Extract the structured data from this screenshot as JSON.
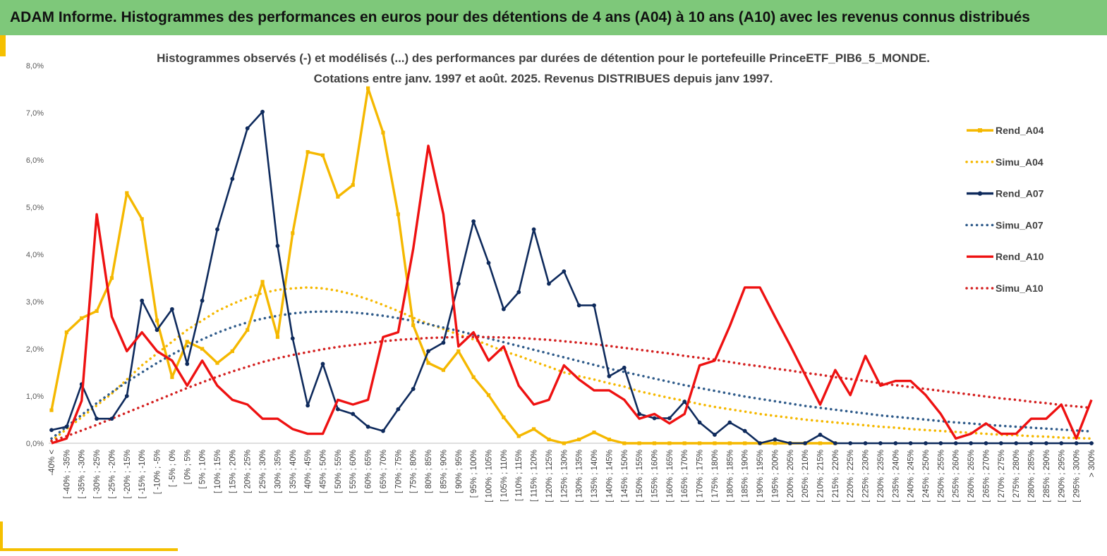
{
  "banner": {
    "title": "ADAM Informe. Histogrammes des performances en euros pour des détentions de 4 ans (A04) à 10 ans (A10) avec les revenus connus distribués"
  },
  "chart_data": {
    "type": "line",
    "title": "Histogrammes observés (-) et modélisés (...) des performances par durées de détention pour le portefeuille PrinceETF_PIB6_5_MONDE.",
    "subtitle": "Cotations entre janv. 1997 et août. 2025. Revenus DISTRIBUES depuis janv 1997.",
    "xlabel": "",
    "ylabel": "",
    "ylim": [
      0,
      8
    ],
    "yticks": [
      "0,0%",
      "1,0%",
      "2,0%",
      "3,0%",
      "4,0%",
      "5,0%",
      "6,0%",
      "7,0%",
      "8,0%"
    ],
    "grid": false,
    "legend_position": "right",
    "categories": [
      "-40% <",
      "[ -40% ; -35%",
      "[ -35% ; -30%",
      "[ -30% ; -25%",
      "[ -25% ; -20%",
      "[ -20% ; -15%",
      "[ -15% ; -10%",
      "[ -10% ; -5%",
      "[ -5% ; 0%",
      "[ 0% ; 5%",
      "[ 5% ; 10%",
      "[ 10% ; 15%",
      "[ 15% ; 20%",
      "[ 20% ; 25%",
      "[ 25% ; 30%",
      "[ 30% ; 35%",
      "[ 35% ; 40%",
      "[ 40% ; 45%",
      "[ 45% ; 50%",
      "[ 50% ; 55%",
      "[ 55% ; 60%",
      "[ 60% ; 65%",
      "[ 65% ; 70%",
      "[ 70% ; 75%",
      "[ 75% ; 80%",
      "[ 80% ; 85%",
      "[ 85% ; 90%",
      "[ 90% ; 95%",
      "[ 95% ; 100%",
      "[ 100% ; 105%",
      "[ 105% ; 110%",
      "[ 110% ; 115%",
      "[ 115% ; 120%",
      "[ 120% ; 125%",
      "[ 125% ; 130%",
      "[ 130% ; 135%",
      "[ 135% ; 140%",
      "[ 140% ; 145%",
      "[ 145% ; 150%",
      "[ 150% ; 155%",
      "[ 155% ; 160%",
      "[ 160% ; 165%",
      "[ 165% ; 170%",
      "[ 170% ; 175%",
      "[ 175% ; 180%",
      "[ 180% ; 185%",
      "[ 185% ; 190%",
      "[ 190% ; 195%",
      "[ 195% ; 200%",
      "[ 200% ; 205%",
      "[ 205% ; 210%",
      "[ 210% ; 215%",
      "[ 215% ; 220%",
      "[ 220% ; 225%",
      "[ 225% ; 230%",
      "[ 230% ; 235%",
      "[ 235% ; 240%",
      "[ 240% ; 245%",
      "[ 245% ; 250%",
      "[ 250% ; 255%",
      "[ 255% ; 260%",
      "[ 260% ; 265%",
      "[ 265% ; 270%",
      "[ 270% ; 275%",
      "[ 275% ; 280%",
      "[ 280% ; 285%",
      "[ 285% ; 290%",
      "[ 290% ; 295%",
      "[ 295% ; 300%",
      "> 300%"
    ],
    "series": [
      {
        "name": "Rend_A04",
        "color": "#f5b800",
        "style": "solid",
        "marker": "square",
        "values": [
          0.7,
          2.35,
          2.65,
          2.8,
          3.5,
          5.3,
          4.75,
          2.6,
          1.4,
          2.15,
          2.0,
          1.7,
          1.95,
          2.4,
          3.42,
          2.25,
          4.45,
          6.17,
          6.1,
          5.22,
          5.47,
          7.52,
          6.58,
          4.85,
          2.5,
          1.7,
          1.55,
          1.95,
          1.4,
          1.02,
          0.55,
          0.15,
          0.3,
          0.08,
          0.0,
          0.08,
          0.23,
          0.08,
          0.0,
          0.0,
          0.0,
          0.0,
          0.0,
          0.0,
          0.0,
          0.0,
          0.0,
          0.0,
          0.0,
          0.0,
          0.0,
          0.0,
          0.0,
          null,
          null,
          null,
          null,
          null,
          null,
          null,
          null,
          null,
          null,
          null,
          null,
          null,
          null,
          null,
          null,
          null
        ]
      },
      {
        "name": "Simu_A04",
        "color": "#f5b800",
        "style": "dotted",
        "marker": "none",
        "values": [
          0.05,
          0.3,
          0.55,
          0.8,
          1.05,
          1.35,
          1.65,
          1.9,
          2.15,
          2.4,
          2.6,
          2.8,
          2.95,
          3.08,
          3.18,
          3.25,
          3.28,
          3.3,
          3.28,
          3.23,
          3.15,
          3.05,
          2.93,
          2.8,
          2.66,
          2.53,
          2.42,
          2.3,
          2.2,
          2.08,
          1.95,
          1.85,
          1.73,
          1.62,
          1.5,
          1.42,
          1.35,
          1.27,
          1.2,
          1.1,
          1.03,
          0.96,
          0.9,
          0.83,
          0.77,
          0.72,
          0.67,
          0.62,
          0.58,
          0.54,
          0.5,
          0.47,
          0.44,
          0.41,
          0.38,
          0.35,
          0.33,
          0.3,
          0.28,
          0.26,
          0.24,
          0.22,
          0.2,
          0.18,
          0.17,
          0.15,
          0.14,
          0.12,
          0.11,
          0.1
        ]
      },
      {
        "name": "Rend_A07",
        "color": "#0e2a5c",
        "style": "solid",
        "marker": "circle",
        "values": [
          0.28,
          0.35,
          1.25,
          0.52,
          0.52,
          1.0,
          3.02,
          2.4,
          2.84,
          1.68,
          3.02,
          4.53,
          5.6,
          6.67,
          7.02,
          4.18,
          2.22,
          0.8,
          1.68,
          0.72,
          0.62,
          0.35,
          0.26,
          0.72,
          1.15,
          1.95,
          2.13,
          3.38,
          4.7,
          3.82,
          2.84,
          3.2,
          4.53,
          3.38,
          3.64,
          2.92,
          2.92,
          1.42,
          1.6,
          0.62,
          0.53,
          0.53,
          0.88,
          0.44,
          0.18,
          0.44,
          0.26,
          0.0,
          0.08,
          0.0,
          0.0,
          0.18,
          0.0,
          0.0,
          0.0,
          0.0,
          0.0,
          0.0,
          0.0,
          0.0,
          0.0,
          0.0,
          0.0,
          0.0,
          0.0,
          0.0,
          0.0,
          0.0,
          0.0,
          0.0
        ]
      },
      {
        "name": "Simu_A07",
        "color": "#2f5b8a",
        "style": "dotted",
        "marker": "none",
        "values": [
          0.1,
          0.35,
          0.6,
          0.85,
          1.08,
          1.3,
          1.5,
          1.7,
          1.88,
          2.05,
          2.2,
          2.34,
          2.46,
          2.56,
          2.64,
          2.7,
          2.75,
          2.78,
          2.79,
          2.79,
          2.77,
          2.74,
          2.7,
          2.65,
          2.59,
          2.52,
          2.45,
          2.38,
          2.3,
          2.22,
          2.14,
          2.06,
          1.98,
          1.9,
          1.82,
          1.74,
          1.66,
          1.58,
          1.51,
          1.44,
          1.37,
          1.3,
          1.23,
          1.17,
          1.11,
          1.05,
          0.99,
          0.94,
          0.89,
          0.84,
          0.79,
          0.75,
          0.71,
          0.67,
          0.63,
          0.59,
          0.56,
          0.53,
          0.5,
          0.47,
          0.44,
          0.42,
          0.39,
          0.37,
          0.35,
          0.33,
          0.31,
          0.29,
          0.27,
          0.25
        ]
      },
      {
        "name": "Rend_A10",
        "color": "#ee1111",
        "style": "solid",
        "marker": "none",
        "values": [
          0.0,
          0.1,
          0.9,
          4.85,
          2.68,
          1.95,
          2.35,
          1.95,
          1.75,
          1.22,
          1.75,
          1.22,
          0.92,
          0.82,
          0.52,
          0.52,
          0.3,
          0.2,
          0.2,
          0.92,
          0.82,
          0.92,
          2.25,
          2.35,
          4.12,
          6.3,
          4.85,
          2.05,
          2.35,
          1.75,
          2.05,
          1.22,
          0.82,
          0.92,
          1.65,
          1.35,
          1.12,
          1.12,
          0.92,
          0.52,
          0.62,
          0.42,
          0.62,
          1.65,
          1.75,
          2.48,
          3.3,
          3.3,
          2.68,
          2.08,
          1.45,
          0.82,
          1.55,
          1.02,
          1.85,
          1.22,
          1.32,
          1.32,
          1.02,
          0.62,
          0.1,
          0.2,
          0.42,
          0.2,
          0.2,
          0.52,
          0.52,
          0.82,
          0.1,
          0.92
        ]
      },
      {
        "name": "Simu_A10",
        "color": "#d42020",
        "style": "dotted",
        "marker": "none",
        "values": [
          0.05,
          0.15,
          0.27,
          0.39,
          0.52,
          0.65,
          0.78,
          0.91,
          1.04,
          1.17,
          1.29,
          1.41,
          1.52,
          1.62,
          1.72,
          1.8,
          1.87,
          1.93,
          1.99,
          2.04,
          2.08,
          2.12,
          2.16,
          2.19,
          2.21,
          2.23,
          2.24,
          2.25,
          2.25,
          2.25,
          2.24,
          2.23,
          2.21,
          2.19,
          2.16,
          2.13,
          2.1,
          2.06,
          2.02,
          1.98,
          1.94,
          1.9,
          1.85,
          1.81,
          1.77,
          1.72,
          1.67,
          1.63,
          1.58,
          1.54,
          1.49,
          1.45,
          1.4,
          1.36,
          1.32,
          1.27,
          1.23,
          1.19,
          1.15,
          1.11,
          1.07,
          1.03,
          0.99,
          0.95,
          0.92,
          0.88,
          0.85,
          0.81,
          0.78,
          0.75
        ]
      }
    ]
  }
}
